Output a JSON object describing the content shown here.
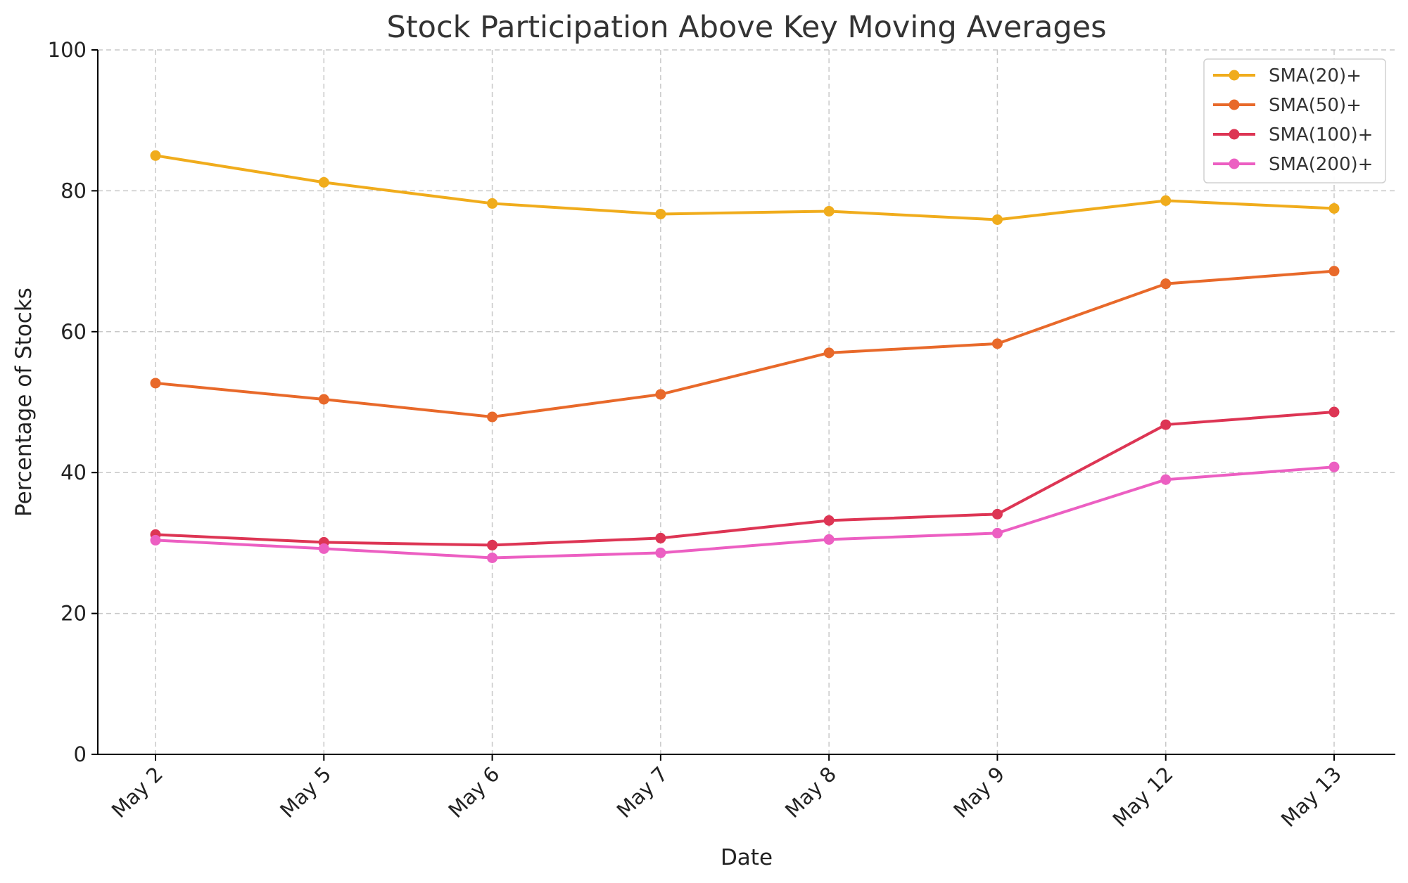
{
  "chart_data": {
    "type": "line",
    "title": "Stock Participation Above Key Moving Averages",
    "xlabel": "Date",
    "ylabel": "Percentage of Stocks",
    "categories": [
      "May 2",
      "May 5",
      "May 6",
      "May 7",
      "May 8",
      "May 9",
      "May 12",
      "May 13"
    ],
    "ylim": [
      0,
      100
    ],
    "yticks": [
      0,
      20,
      40,
      60,
      80,
      100
    ],
    "grid": true,
    "legend_position": "top-right",
    "series": [
      {
        "name": "SMA(20)+",
        "color": "#f0ac1c",
        "values": [
          85.0,
          81.2,
          78.2,
          76.7,
          77.1,
          75.9,
          78.6,
          77.5
        ]
      },
      {
        "name": "SMA(50)+",
        "color": "#e8692a",
        "values": [
          52.7,
          50.4,
          47.9,
          51.1,
          57.0,
          58.3,
          66.8,
          68.6
        ]
      },
      {
        "name": "SMA(100)+",
        "color": "#dd3554",
        "values": [
          31.2,
          30.1,
          29.7,
          30.7,
          33.2,
          34.1,
          46.8,
          48.6
        ]
      },
      {
        "name": "SMA(200)+",
        "color": "#ec5fc2",
        "values": [
          30.4,
          29.2,
          27.9,
          28.6,
          30.5,
          31.4,
          39.0,
          40.8
        ]
      }
    ]
  }
}
